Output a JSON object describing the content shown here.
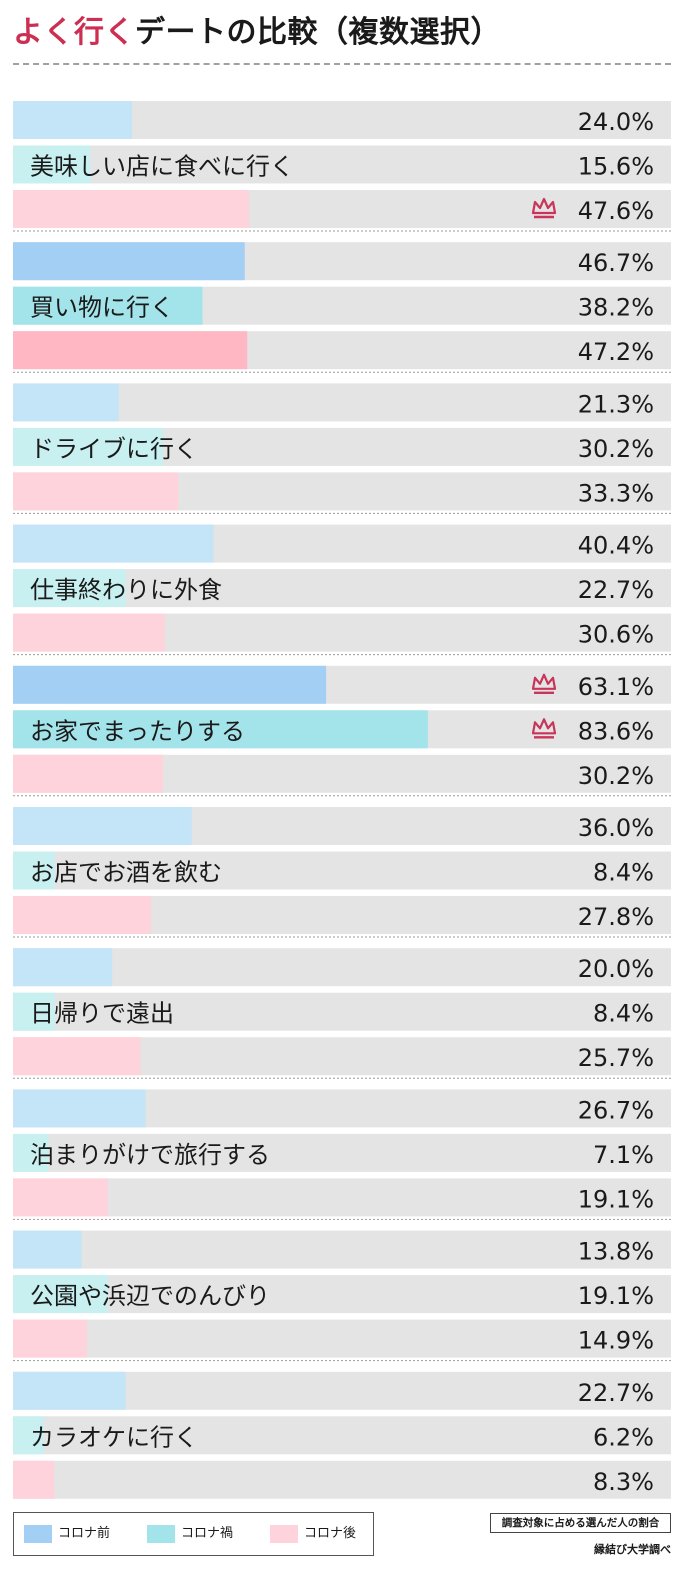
{
  "title": {
    "accent": "よく行く",
    "rest": "デートの比較（複数選択）"
  },
  "note": "調査対象に占める選んだ人の割合",
  "source": "縁結び大学調べ",
  "colors": {
    "before_light": "#c4e4f8",
    "before_dark": "#a3cff5",
    "during_light": "#c9f0f1",
    "during_dark": "#a3e3ea",
    "after_light": "#ffd3dc",
    "after_dark": "#ffb7c3",
    "track": "#e4e4e4",
    "crown": "#c8345a"
  },
  "chart_data": {
    "type": "bar",
    "orientation": "horizontal",
    "grouped": true,
    "xlim": [
      0,
      100
    ],
    "unit": "%",
    "categories": [
      "美味しい店に食べに行く",
      "買い物に行く",
      "ドライブに行く",
      "仕事終わりに外食",
      "お家でまったりする",
      "お店でお酒を飲む",
      "日帰りで遠出",
      "泊まりがけで旅行する",
      "公園や浜辺でのんびり",
      "カラオケに行く"
    ],
    "series": [
      {
        "name": "コロナ前",
        "values": [
          24.0,
          46.7,
          21.3,
          40.4,
          63.1,
          36.0,
          20.0,
          26.7,
          13.8,
          22.7
        ],
        "labels": [
          "24.0%",
          "46.7%",
          "21.3%",
          "40.4%",
          "63.1%",
          "36.0%",
          "20.0%",
          "26.7%",
          "13.8%",
          "22.7%"
        ]
      },
      {
        "name": "コロナ禍",
        "values": [
          15.6,
          38.2,
          30.2,
          22.7,
          83.6,
          8.4,
          8.4,
          7.1,
          19.1,
          6.2
        ],
        "labels": [
          "15.6%",
          "38.2%",
          "30.2%",
          "22.7%",
          "83.6%",
          "8.4%",
          "8.4%",
          "7.1%",
          "19.1%",
          "6.2%"
        ]
      },
      {
        "name": "コロナ後",
        "values": [
          47.6,
          47.2,
          33.3,
          30.6,
          30.2,
          27.8,
          25.7,
          19.1,
          14.9,
          8.3
        ],
        "labels": [
          "47.6%",
          "47.2%",
          "33.3%",
          "30.6%",
          "30.2%",
          "27.8%",
          "25.7%",
          "19.1%",
          "14.9%",
          "8.3%"
        ]
      }
    ],
    "highlighted_group": 1,
    "top_marks": [
      {
        "category": 0,
        "series": 2
      },
      {
        "category": 4,
        "series": 0
      },
      {
        "category": 4,
        "series": 1
      }
    ],
    "mark_icon": "crown-icon",
    "legend_position": "bottom-left"
  }
}
